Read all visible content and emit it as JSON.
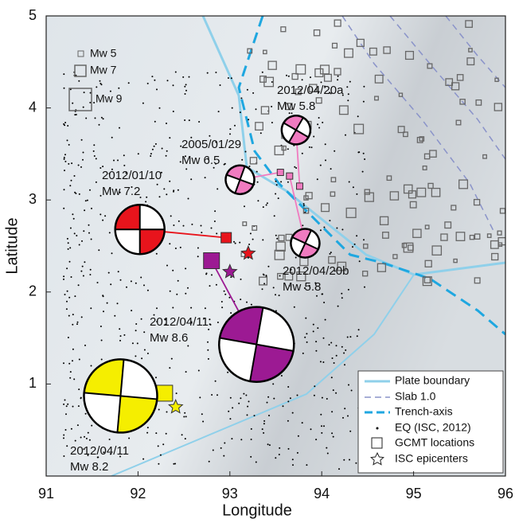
{
  "map": {
    "xlabel": "Longitude",
    "ylabel": "Latitude",
    "xlim": [
      91,
      96
    ],
    "ylim": [
      0,
      5
    ],
    "xticks": [
      91,
      92,
      93,
      94,
      95,
      96
    ],
    "yticks": [
      1,
      2,
      3,
      4,
      5
    ],
    "magnitude_scale": [
      "Mw 5",
      "Mw 7",
      "Mw 9"
    ],
    "legend": [
      "Plate boundary",
      "Slab 1.0",
      "Trench-axis",
      "EQ (ISC, 2012)",
      "GCMT locations",
      "ISC epicenters"
    ],
    "events": [
      {
        "date": "2012/01/10",
        "magnitude": "Mw 7.2",
        "color": "#e8141c",
        "mechanism": [
          92.02,
          2.68
        ],
        "gcmt": [
          92.96,
          2.59
        ],
        "isc": [
          93.2,
          2.42
        ]
      },
      {
        "date": "2005/01/29",
        "magnitude": "Mw 6.5",
        "color": "#f07bc0",
        "mechanism": [
          93.11,
          3.22
        ],
        "gcmt": [
          93.55,
          3.3
        ]
      },
      {
        "date": "2012/04/20a",
        "magnitude": "Mw 5.8",
        "color": "#f07bc0",
        "mechanism": [
          93.72,
          3.76
        ],
        "gcmt": [
          93.76,
          3.15
        ]
      },
      {
        "date": "2012/04/20b",
        "magnitude": "Mw 5.8",
        "color": "#f07bc0",
        "mechanism": [
          93.82,
          2.53
        ],
        "gcmt": [
          93.65,
          3.26
        ]
      },
      {
        "date": "2012/04/11",
        "magnitude": "Mw 8.6",
        "color": "#9c1a93",
        "mechanism": [
          93.29,
          1.43
        ],
        "gcmt": [
          92.8,
          2.34
        ],
        "isc": [
          93.0,
          2.22
        ]
      },
      {
        "date": "2012/04/11",
        "magnitude": "Mw 8.2",
        "color": "#f5ee00",
        "mechanism": [
          91.81,
          0.87
        ],
        "gcmt": [
          92.29,
          0.9
        ],
        "isc": [
          92.41,
          0.75
        ]
      }
    ]
  }
}
